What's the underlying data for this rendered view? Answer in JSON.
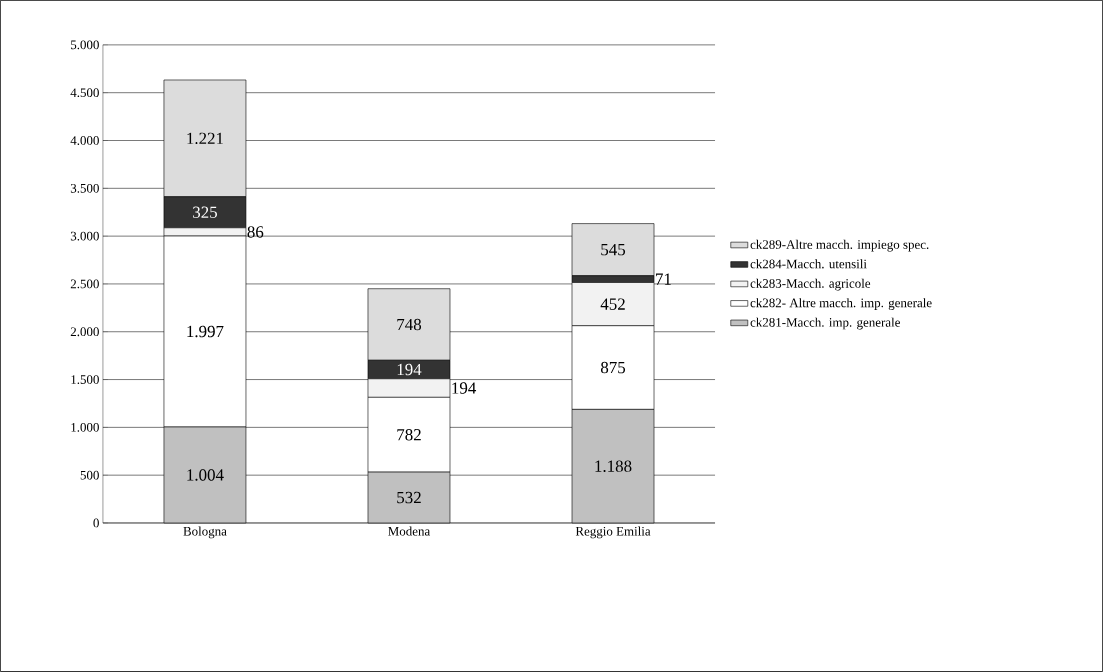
{
  "chart_data": {
    "type": "bar",
    "stacked": true,
    "categories": [
      "Bologna",
      "Modena",
      "Reggio Emilia"
    ],
    "series": [
      {
        "name": "ck281-Macch. imp. generale",
        "color": "#c0c0c0",
        "values": [
          1004,
          532,
          1188
        ],
        "value_labels": [
          "1.004",
          "532",
          "1.188"
        ]
      },
      {
        "name": "ck282- Altre macch. imp. generale",
        "color": "#ffffff",
        "values": [
          1997,
          782,
          875
        ],
        "value_labels": [
          "1.997",
          "782",
          "875"
        ]
      },
      {
        "name": "ck283-Macch. agricole",
        "color": "#f2f2f2",
        "values": [
          86,
          194,
          452
        ],
        "value_labels": [
          "86",
          "194",
          "452"
        ]
      },
      {
        "name": "ck284-Macch. utensili",
        "color": "#333333",
        "values": [
          325,
          194,
          71
        ],
        "value_labels": [
          "325",
          "194",
          "71"
        ]
      },
      {
        "name": "ck289-Altre macch. impiego spec.",
        "color": "#dcdcdc",
        "values": [
          1221,
          748,
          545
        ],
        "value_labels": [
          "1.221",
          "748",
          "545"
        ]
      }
    ],
    "ylim": [
      0,
      5000
    ],
    "yticks": [
      {
        "value": 0,
        "label": "0"
      },
      {
        "value": 500,
        "label": "500"
      },
      {
        "value": 1000,
        "label": "1.000"
      },
      {
        "value": 1500,
        "label": "1.500"
      },
      {
        "value": 2000,
        "label": "2.000"
      },
      {
        "value": 2500,
        "label": "2.500"
      },
      {
        "value": 3000,
        "label": "3.000"
      },
      {
        "value": 3500,
        "label": "3.500"
      },
      {
        "value": 4000,
        "label": "4.000"
      },
      {
        "value": 4500,
        "label": "4.500"
      },
      {
        "value": 5000,
        "label": "5.000"
      }
    ],
    "grid": "y",
    "legend": "right"
  }
}
